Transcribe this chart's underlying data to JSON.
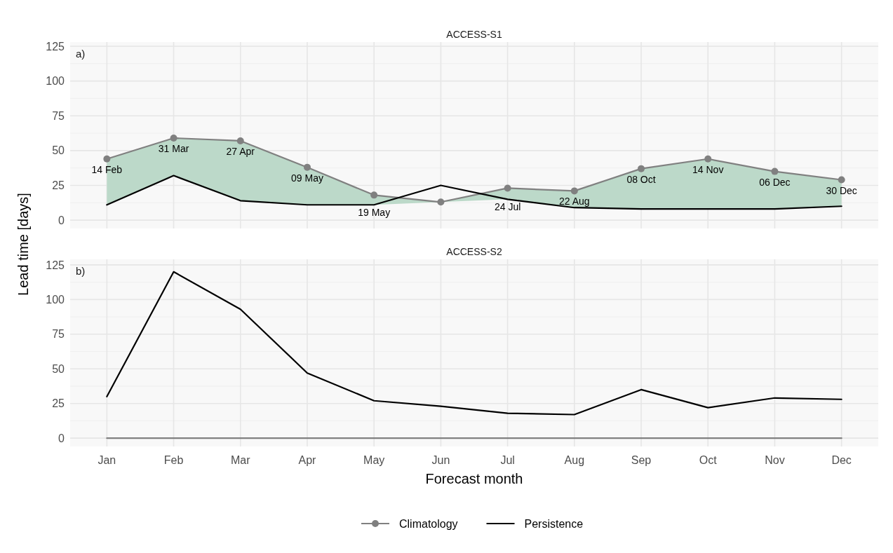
{
  "chart_data": [
    {
      "type": "line",
      "title": "ACCESS-S1",
      "ylabel": "Lead time [days]",
      "categories": [
        "Jan",
        "Feb",
        "Mar",
        "Apr",
        "May",
        "Jun",
        "Jul",
        "Aug",
        "Sep",
        "Oct",
        "Nov",
        "Dec"
      ],
      "ylim": [
        -6,
        128
      ],
      "yticks": [
        0,
        25,
        50,
        75,
        100,
        125
      ],
      "grid": true,
      "tick_labels": "y",
      "legend": "bottom",
      "annotations": [
        "a)"
      ],
      "series": [
        {
          "name": "Climatology",
          "color": "#808080",
          "marker": "circle",
          "values": [
            44,
            59,
            57,
            38,
            18,
            13,
            23,
            21,
            37,
            44,
            35,
            29
          ],
          "value_labels": [
            "14 Feb",
            "31 Mar",
            "27 Apr",
            "09 May",
            "19 May",
            null,
            "24 Jul",
            "22 Aug",
            "08 Oct",
            "14 Nov",
            "06 Dec",
            "30 Dec"
          ],
          "upper": [
            44,
            59,
            57,
            38,
            18,
            13,
            23,
            21,
            37,
            44,
            35,
            29
          ],
          "lower": [
            11,
            32,
            14,
            11,
            11,
            13,
            15,
            9,
            8,
            8,
            8,
            10
          ]
        },
        {
          "name": "Persistence",
          "color": "#000000",
          "marker": "none",
          "values": [
            11,
            32,
            14,
            11,
            11,
            25,
            15,
            9,
            8,
            8,
            8,
            10
          ]
        }
      ]
    },
    {
      "type": "line",
      "title": "ACCESS-S2",
      "xlabel": "Forecast month",
      "categories": [
        "Jan",
        "Feb",
        "Mar",
        "Apr",
        "May",
        "Jun",
        "Jul",
        "Aug",
        "Sep",
        "Oct",
        "Nov",
        "Dec"
      ],
      "ylim": [
        -6,
        129
      ],
      "yticks": [
        0,
        25,
        50,
        75,
        100,
        125
      ],
      "grid": true,
      "annotations": [
        "b)"
      ],
      "series": [
        {
          "name": "Climatology",
          "color": "#808080",
          "marker": "none",
          "values": [
            0,
            0,
            0,
            0,
            0,
            0,
            0,
            0,
            0,
            0,
            0,
            0
          ]
        },
        {
          "name": "Persistence",
          "color": "#000000",
          "marker": "none",
          "values": [
            30,
            120,
            93,
            47,
            27,
            23,
            18,
            17,
            35,
            22,
            29,
            28
          ]
        }
      ]
    }
  ]
}
